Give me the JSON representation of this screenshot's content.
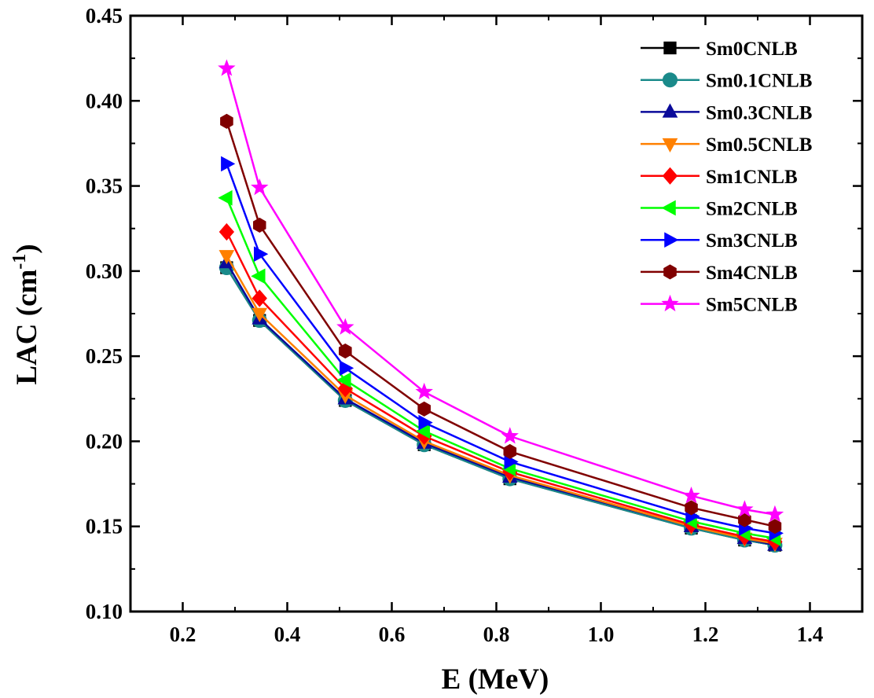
{
  "chart_data": {
    "type": "line",
    "title": "",
    "xlabel": "E (MeV)",
    "ylabel_main": "LAC (cm",
    "ylabel_sup": "-1",
    "ylabel_close": ")",
    "xlim": [
      0.1,
      1.5
    ],
    "ylim": [
      0.1,
      0.45
    ],
    "xticks": [
      0.2,
      0.4,
      0.6,
      0.8,
      1.0,
      1.2,
      1.4
    ],
    "xtick_labels": [
      "0.2",
      "0.4",
      "0.6",
      "0.8",
      "1.0",
      "1.2",
      "1.4"
    ],
    "yticks": [
      0.1,
      0.15,
      0.2,
      0.25,
      0.3,
      0.35,
      0.4,
      0.45
    ],
    "ytick_labels": [
      "0.10",
      "0.15",
      "0.20",
      "0.25",
      "0.30",
      "0.35",
      "0.40",
      "0.45"
    ],
    "grid": false,
    "legend_position": "top-right",
    "x": [
      0.284,
      0.347,
      0.511,
      0.662,
      0.826,
      1.173,
      1.275,
      1.333
    ],
    "series": [
      {
        "name": "Sm0CNLB",
        "color": "#000000",
        "marker": "square",
        "values": [
          0.302,
          0.271,
          0.224,
          0.198,
          0.178,
          0.149,
          0.142,
          0.139
        ]
      },
      {
        "name": "Sm0.1CNLB",
        "color": "#1a8a8a",
        "marker": "circle",
        "values": [
          0.302,
          0.271,
          0.224,
          0.198,
          0.178,
          0.149,
          0.142,
          0.139
        ]
      },
      {
        "name": "Sm0.3CNLB",
        "color": "#0a0a9a",
        "marker": "triangle-up",
        "values": [
          0.305,
          0.272,
          0.225,
          0.199,
          0.179,
          0.15,
          0.143,
          0.139
        ]
      },
      {
        "name": "Sm0.5CNLB",
        "color": "#ff8000",
        "marker": "triangle-down",
        "values": [
          0.309,
          0.275,
          0.227,
          0.2,
          0.18,
          0.15,
          0.143,
          0.14
        ]
      },
      {
        "name": "Sm1CNLB",
        "color": "#ff0000",
        "marker": "diamond",
        "values": [
          0.323,
          0.284,
          0.231,
          0.203,
          0.182,
          0.151,
          0.144,
          0.141
        ]
      },
      {
        "name": "Sm2CNLB",
        "color": "#00ff00",
        "marker": "triangle-left",
        "values": [
          0.343,
          0.297,
          0.236,
          0.206,
          0.184,
          0.153,
          0.146,
          0.143
        ]
      },
      {
        "name": "Sm3CNLB",
        "color": "#0000ff",
        "marker": "triangle-right",
        "values": [
          0.363,
          0.31,
          0.243,
          0.211,
          0.188,
          0.156,
          0.149,
          0.146
        ]
      },
      {
        "name": "Sm4CNLB",
        "color": "#800000",
        "marker": "hexagon",
        "values": [
          0.388,
          0.327,
          0.253,
          0.219,
          0.194,
          0.161,
          0.154,
          0.15
        ]
      },
      {
        "name": "Sm5CNLB",
        "color": "#ff00ff",
        "marker": "star",
        "values": [
          0.419,
          0.349,
          0.267,
          0.229,
          0.203,
          0.168,
          0.16,
          0.157
        ]
      }
    ]
  }
}
